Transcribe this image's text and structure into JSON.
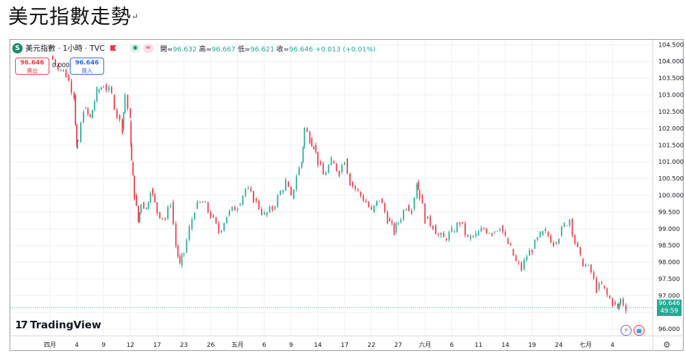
{
  "page": {
    "title": "美元指數走勢",
    "title_mark": "↵"
  },
  "legend": {
    "symbol": "美元指數 · 1小時 · TVC",
    "logo_letter": "S",
    "ohlc": [
      {
        "label": "開=",
        "value": "96.632"
      },
      {
        "label": "高=",
        "value": "96.667"
      },
      {
        "label": "低=",
        "value": "96.621"
      },
      {
        "label": "收=",
        "value": "96.646"
      }
    ],
    "change": "+0.013 (+0.01%)"
  },
  "trade": {
    "sell_price": "96.646",
    "sell_label": "賣出",
    "spread": "0.000",
    "buy_price": "96.646",
    "buy_label": "買入"
  },
  "last_price": {
    "price": "96.646",
    "countdown": "49:59",
    "value": 96.646
  },
  "brand": "TradingView",
  "colors": {
    "up": "#22ab94",
    "down": "#f23645",
    "grid": "#eef0f3",
    "axis_text": "#131722"
  },
  "chart_data": {
    "type": "line",
    "title": "美元指數走勢",
    "subtitle": "美元指數 · 1小時 · TVC",
    "xlabel": "",
    "ylabel": "",
    "ylim": [
      95.8,
      104.65
    ],
    "y_ticks": [
      "96.000",
      "96.500",
      "97.000",
      "97.500",
      "98.000",
      "98.500",
      "99.000",
      "99.500",
      "100.000",
      "100.500",
      "101.000",
      "101.500",
      "102.000",
      "102.500",
      "103.000",
      "103.500",
      "104.000",
      "104.500"
    ],
    "x_ticks": [
      "四月",
      "4",
      "9",
      "12",
      "17",
      "23",
      "26",
      "五月",
      "6",
      "9",
      "14",
      "17",
      "22",
      "27",
      "六月",
      "6",
      "11",
      "14",
      "19",
      "24",
      "七月",
      "4"
    ],
    "x_tick_positions": [
      0,
      1,
      2,
      3,
      4,
      5,
      6,
      7,
      8,
      9,
      10,
      11,
      12,
      13,
      14,
      15,
      16,
      17,
      18,
      19,
      20,
      21
    ],
    "grid": true,
    "series": [
      {
        "values": [
          [
            0,
            104.15
          ],
          [
            0.6,
            103.6
          ],
          [
            0.9,
            103.0
          ],
          [
            1.0,
            101.4
          ],
          [
            1.05,
            101.6
          ],
          [
            1.25,
            102.6
          ],
          [
            1.5,
            102.3
          ],
          [
            1.75,
            103.1
          ],
          [
            2.0,
            103.3
          ],
          [
            2.3,
            103.0
          ],
          [
            2.5,
            102.4
          ],
          [
            2.7,
            102.0
          ],
          [
            2.8,
            103.0
          ],
          [
            3.0,
            102.2
          ],
          [
            3.05,
            101.0
          ],
          [
            3.15,
            100.0
          ],
          [
            3.3,
            99.2
          ],
          [
            3.4,
            99.8
          ],
          [
            3.6,
            99.6
          ],
          [
            3.75,
            100.2
          ],
          [
            4.0,
            99.5
          ],
          [
            4.3,
            99.3
          ],
          [
            4.5,
            99.8
          ],
          [
            4.7,
            98.5
          ],
          [
            4.85,
            97.9
          ],
          [
            5.0,
            98.3
          ],
          [
            5.2,
            99.0
          ],
          [
            5.4,
            99.6
          ],
          [
            5.7,
            99.8
          ],
          [
            6.0,
            99.4
          ],
          [
            6.3,
            98.9
          ],
          [
            6.6,
            99.4
          ],
          [
            7.0,
            99.7
          ],
          [
            7.3,
            100.2
          ],
          [
            7.6,
            99.9
          ],
          [
            8.0,
            99.4
          ],
          [
            8.3,
            99.6
          ],
          [
            8.6,
            100.1
          ],
          [
            8.8,
            100.4
          ],
          [
            9.0,
            99.9
          ],
          [
            9.2,
            100.6
          ],
          [
            9.4,
            101.0
          ],
          [
            9.5,
            102.0
          ],
          [
            9.7,
            101.7
          ],
          [
            9.85,
            101.5
          ],
          [
            10.0,
            101.0
          ],
          [
            10.2,
            100.6
          ],
          [
            10.5,
            101.0
          ],
          [
            10.8,
            100.7
          ],
          [
            11.0,
            101.1
          ],
          [
            11.2,
            100.4
          ],
          [
            11.5,
            100.1
          ],
          [
            11.8,
            99.8
          ],
          [
            12.0,
            99.5
          ],
          [
            12.3,
            99.9
          ],
          [
            12.6,
            99.3
          ],
          [
            12.85,
            98.9
          ],
          [
            13.0,
            99.2
          ],
          [
            13.3,
            99.7
          ],
          [
            13.5,
            99.6
          ],
          [
            13.7,
            100.4
          ],
          [
            13.8,
            100.0
          ],
          [
            14.0,
            99.3
          ],
          [
            14.3,
            99.1
          ],
          [
            14.5,
            98.8
          ],
          [
            14.7,
            98.7
          ],
          [
            15.0,
            98.9
          ],
          [
            15.3,
            99.2
          ],
          [
            15.6,
            98.7
          ],
          [
            15.9,
            98.8
          ],
          [
            16.2,
            99.0
          ],
          [
            16.5,
            98.9
          ],
          [
            16.8,
            99.1
          ],
          [
            17.0,
            98.7
          ],
          [
            17.2,
            98.4
          ],
          [
            17.4,
            98.0
          ],
          [
            17.6,
            97.8
          ],
          [
            17.8,
            98.2
          ],
          [
            18.0,
            98.4
          ],
          [
            18.3,
            98.8
          ],
          [
            18.5,
            98.9
          ],
          [
            18.8,
            98.6
          ],
          [
            19.0,
            98.8
          ],
          [
            19.2,
            99.1
          ],
          [
            19.4,
            99.3
          ],
          [
            19.6,
            98.6
          ],
          [
            19.8,
            98.1
          ],
          [
            20.0,
            97.9
          ],
          [
            20.2,
            97.7
          ],
          [
            20.4,
            97.2
          ],
          [
            20.6,
            97.3
          ],
          [
            20.8,
            97.0
          ],
          [
            21.0,
            96.8
          ],
          [
            21.2,
            96.6
          ],
          [
            21.3,
            96.9
          ],
          [
            21.5,
            96.65
          ]
        ]
      }
    ]
  }
}
